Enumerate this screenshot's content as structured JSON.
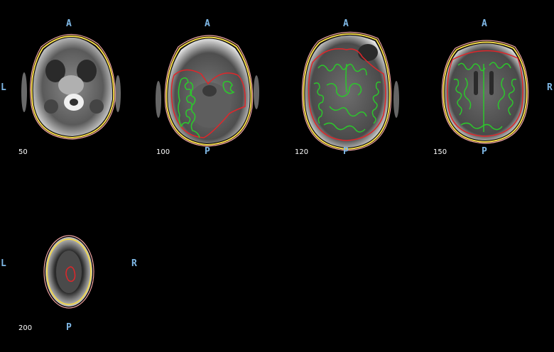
{
  "orientation": {
    "anterior": "A",
    "posterior": "P",
    "left": "L",
    "right": "R"
  },
  "slices": [
    {
      "number": "50"
    },
    {
      "number": "100"
    },
    {
      "number": "120"
    },
    {
      "number": "150"
    },
    {
      "number": "200"
    }
  ],
  "colors": {
    "background": "#000000",
    "orientation_label": "#7fb8e6",
    "slice_label": "#ffffff",
    "outer_skin_contour": "#f0a4a4",
    "skull_contour": "#f2d84a",
    "brain_contour": "#e0262a",
    "cortex_contour": "#2cc72c"
  }
}
